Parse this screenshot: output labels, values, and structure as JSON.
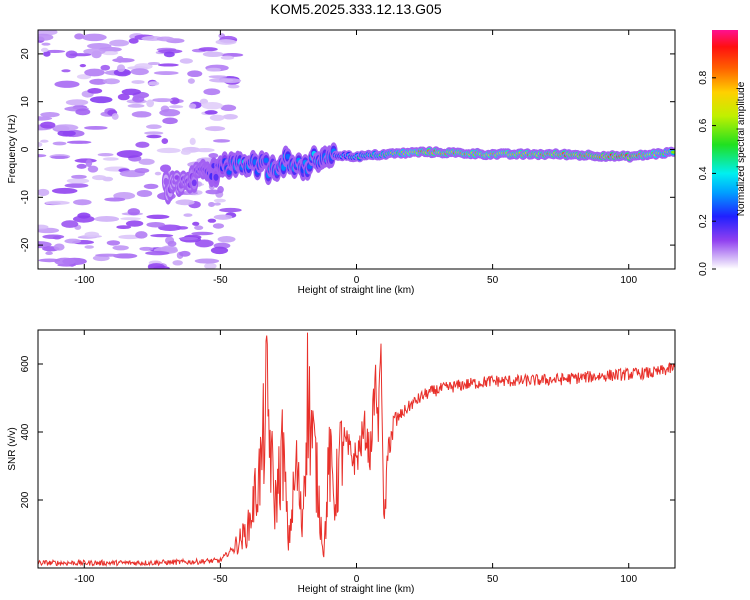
{
  "title": "KOM5.2025.333.12.13.G05",
  "colors": {
    "snr_line": "#e8302a",
    "low_amp": "#c8a8f0",
    "axis": "#000000"
  },
  "chart_data": [
    {
      "type": "heatmap",
      "id": "spectrogram",
      "xlabel": "Height of straight line (km)",
      "ylabel": "Frequency (Hz)",
      "xlim": [
        -117,
        117
      ],
      "ylim": [
        -25,
        25
      ],
      "xticks": [
        -100,
        -50,
        0,
        50,
        100
      ],
      "yticks": [
        -20,
        -10,
        0,
        10,
        20
      ],
      "colorbar": {
        "label": "Normalized spectral amplitude",
        "range": [
          0,
          1
        ],
        "ticks": [
          "0.0",
          "0.2",
          "0.4",
          "0.6",
          "0.8"
        ],
        "colormap": "rainbow (white→violet→blue→cyan→green→yellow→orange→red→magenta)"
      },
      "ridge": {
        "description": "dominant frequency track",
        "x": [
          -70,
          -60,
          -50,
          -45,
          -40,
          -35,
          -30,
          -25,
          -20,
          -15,
          -10,
          0,
          10,
          25,
          50,
          75,
          100,
          117
        ],
        "freq": [
          -8,
          -6,
          -4,
          -3,
          -4,
          -3,
          -5,
          -2,
          -4,
          -2,
          -1,
          -1.5,
          -1,
          -0.5,
          -1,
          -1,
          -1.5,
          -0.5
        ],
        "amplitude": [
          0.1,
          0.15,
          0.2,
          0.3,
          0.35,
          0.3,
          0.3,
          0.35,
          0.3,
          0.35,
          0.3,
          0.45,
          0.55,
          0.8,
          0.75,
          0.8,
          0.85,
          0.6
        ]
      },
      "noise_region": {
        "x": [
          -117,
          -45
        ],
        "freq": [
          -25,
          25
        ],
        "amplitude_max": 0.1
      }
    },
    {
      "type": "line",
      "id": "snr",
      "xlabel": "Height of straight line (km)",
      "ylabel": "SNR (v/v)",
      "xlim": [
        -117,
        117
      ],
      "ylim": [
        0,
        700
      ],
      "xticks": [
        -100,
        -50,
        0,
        50,
        100
      ],
      "yticks": [
        200,
        400,
        600
      ],
      "series": [
        {
          "name": "SNR",
          "x": [
            -117,
            -100,
            -80,
            -60,
            -50,
            -45,
            -40,
            -35,
            -33,
            -30,
            -27,
            -25,
            -22,
            -20,
            -18,
            -15,
            -12,
            -10,
            -8,
            -5,
            -2,
            0,
            3,
            5,
            7,
            8,
            9,
            10,
            12,
            15,
            20,
            25,
            30,
            40,
            50,
            60,
            75,
            90,
            100,
            110,
            117
          ],
          "y": [
            15,
            15,
            15,
            18,
            22,
            60,
            110,
            300,
            500,
            180,
            350,
            70,
            300,
            120,
            510,
            300,
            40,
            320,
            200,
            380,
            330,
            320,
            410,
            330,
            560,
            400,
            700,
            110,
            380,
            440,
            480,
            510,
            525,
            540,
            550,
            550,
            555,
            565,
            570,
            575,
            590
          ]
        }
      ]
    }
  ]
}
